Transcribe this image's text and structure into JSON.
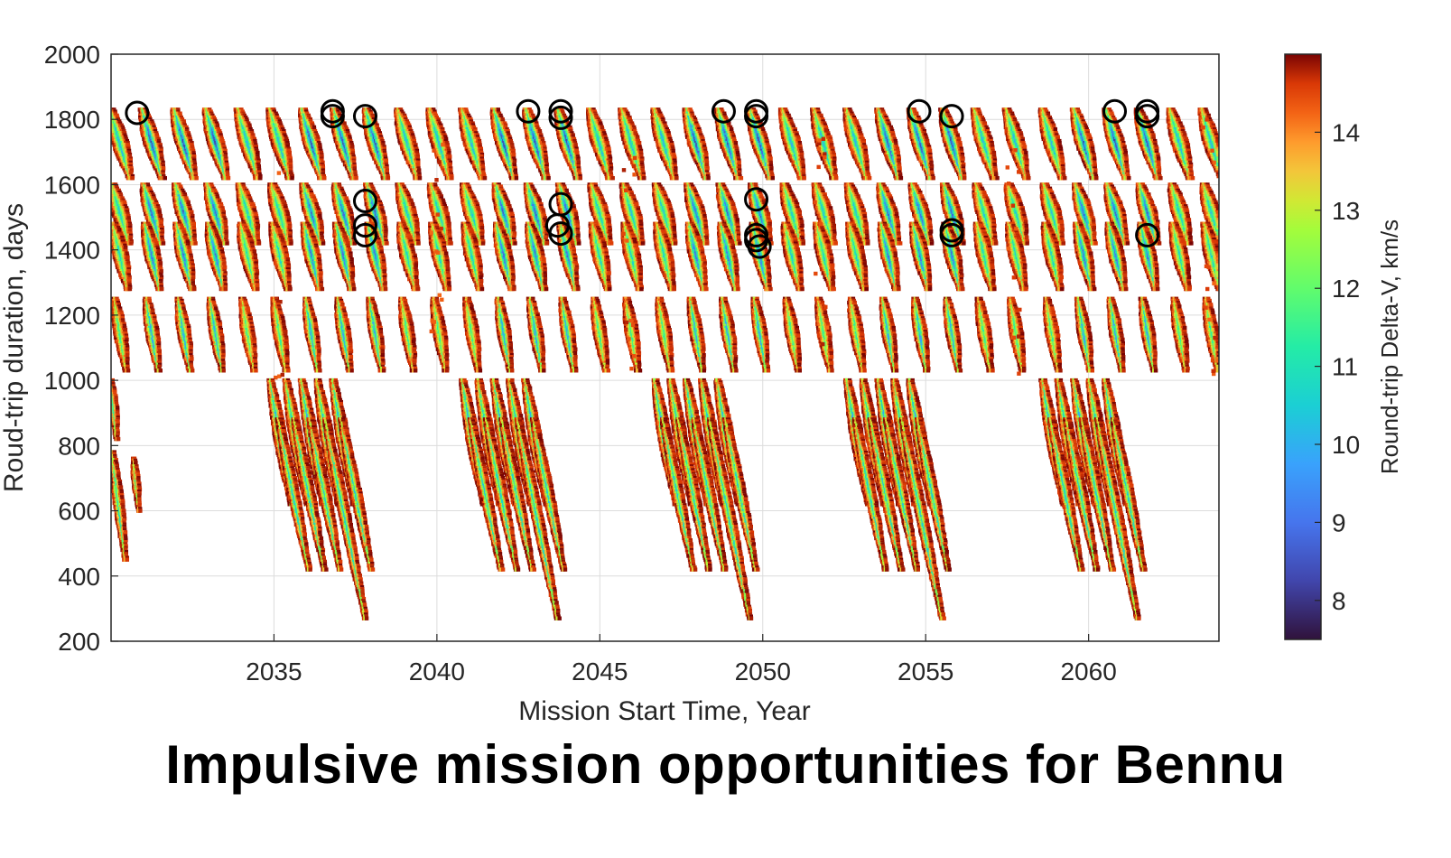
{
  "caption": "Impulsive mission opportunities for Bennu",
  "chart_data": {
    "type": "scatter",
    "xlabel": "Mission Start Time, Year",
    "ylabel": "Roud-trip duration, days",
    "colorbar_label": "Round-trip Delta-V, km/s",
    "xlim": [
      2030,
      2064
    ],
    "ylim": [
      200,
      2000
    ],
    "xticks": [
      "2035",
      "2040",
      "2045",
      "2050",
      "2055",
      "2060"
    ],
    "xtick_values": [
      2035,
      2040,
      2045,
      2050,
      2055,
      2060
    ],
    "yticks": [
      "200",
      "400",
      "600",
      "800",
      "1000",
      "1200",
      "1400",
      "1600",
      "1800",
      "2000"
    ],
    "ytick_values": [
      200,
      400,
      600,
      800,
      1000,
      1200,
      1400,
      1600,
      1800,
      2000
    ],
    "clim": [
      7.5,
      15
    ],
    "cticks": [
      "8",
      "9",
      "10",
      "11",
      "12",
      "13",
      "14"
    ],
    "ctick_values": [
      8,
      9,
      10,
      11,
      12,
      13,
      14
    ],
    "colormap": "turbo",
    "grid": true,
    "cluster_period_years": 6,
    "cluster_starts": [
      2030.0,
      2034.9,
      2040.8,
      2046.7,
      2052.6,
      2058.6
    ],
    "circled_optima": [
      {
        "x": 2030.8,
        "y": 1820
      },
      {
        "x": 2036.8,
        "y": 1825
      },
      {
        "x": 2036.8,
        "y": 1810
      },
      {
        "x": 2037.8,
        "y": 1810
      },
      {
        "x": 2037.8,
        "y": 1550
      },
      {
        "x": 2037.8,
        "y": 1475
      },
      {
        "x": 2037.8,
        "y": 1445
      },
      {
        "x": 2042.8,
        "y": 1825
      },
      {
        "x": 2043.8,
        "y": 1825
      },
      {
        "x": 2043.8,
        "y": 1805
      },
      {
        "x": 2043.8,
        "y": 1540
      },
      {
        "x": 2043.7,
        "y": 1475
      },
      {
        "x": 2043.8,
        "y": 1450
      },
      {
        "x": 2048.8,
        "y": 1825
      },
      {
        "x": 2049.8,
        "y": 1825
      },
      {
        "x": 2049.8,
        "y": 1810
      },
      {
        "x": 2049.8,
        "y": 1555
      },
      {
        "x": 2049.8,
        "y": 1445
      },
      {
        "x": 2049.8,
        "y": 1430
      },
      {
        "x": 2049.9,
        "y": 1410
      },
      {
        "x": 2054.8,
        "y": 1825
      },
      {
        "x": 2055.8,
        "y": 1810
      },
      {
        "x": 2055.8,
        "y": 1460
      },
      {
        "x": 2055.8,
        "y": 1445
      },
      {
        "x": 2060.8,
        "y": 1825
      },
      {
        "x": 2061.8,
        "y": 1825
      },
      {
        "x": 2061.8,
        "y": 1810
      },
      {
        "x": 2061.8,
        "y": 1445
      }
    ]
  }
}
